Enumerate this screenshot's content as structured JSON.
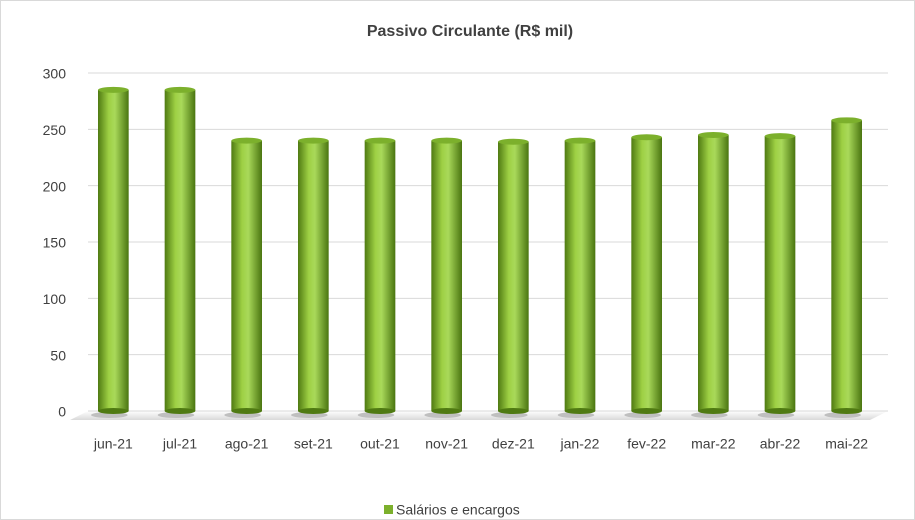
{
  "chart_data": {
    "type": "bar",
    "title": "Passivo Circulante (R$ mil)",
    "categories": [
      "jun-21",
      "jul-21",
      "ago-21",
      "set-21",
      "out-21",
      "nov-21",
      "dez-21",
      "jan-22",
      "fev-22",
      "mar-22",
      "abr-22",
      "mai-22"
    ],
    "series": [
      {
        "name": "Salários e encargos",
        "color": "#7cb02c",
        "values": [
          285,
          285,
          240,
          240,
          240,
          240,
          239,
          240,
          243,
          245,
          244,
          258
        ]
      }
    ],
    "ylim": [
      0,
      300
    ],
    "yticks": [
      0,
      50,
      100,
      150,
      200,
      250,
      300
    ],
    "grid": true,
    "legend": "bottom"
  }
}
